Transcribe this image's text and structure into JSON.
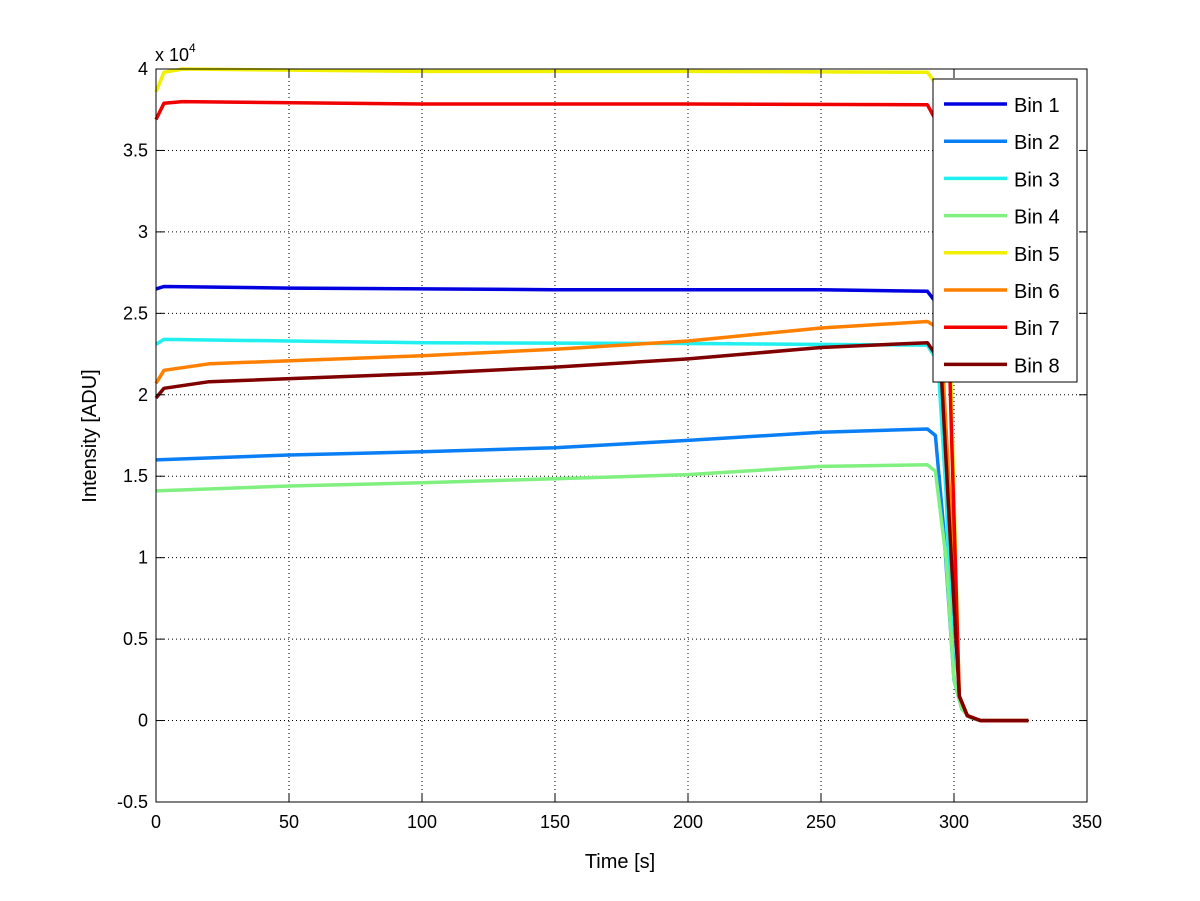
{
  "chart_data": {
    "type": "line",
    "title": "",
    "xlabel": "Time [s]",
    "ylabel": "Intensity [ADU]",
    "y_exponent_label": "x 10",
    "y_exponent": "4",
    "xlim": [
      0,
      350
    ],
    "ylim": [
      -5000,
      40000
    ],
    "xticks": [
      0,
      50,
      100,
      150,
      200,
      250,
      300,
      350
    ],
    "xtick_labels": [
      "0",
      "50",
      "100",
      "150",
      "200",
      "250",
      "300",
      "350"
    ],
    "yticks": [
      -5000,
      0,
      5000,
      10000,
      15000,
      20000,
      25000,
      30000,
      35000,
      40000
    ],
    "ytick_labels": [
      "-0.5",
      "0",
      "0.5",
      "1",
      "1.5",
      "2",
      "2.5",
      "3",
      "3.5",
      "4"
    ],
    "grid": true,
    "legend_position": "top-right",
    "series": [
      {
        "name": "Bin 1",
        "color": "#0000e0",
        "x": [
          0,
          3,
          50,
          150,
          250,
          290,
          294,
          297,
          300,
          303,
          306,
          310,
          328
        ],
        "y": [
          26500,
          26650,
          26550,
          26450,
          26450,
          26350,
          25500,
          15000,
          2500,
          700,
          200,
          0,
          0
        ]
      },
      {
        "name": "Bin 2",
        "color": "#0a7ff5",
        "x": [
          0,
          50,
          100,
          150,
          200,
          250,
          290,
          293,
          296,
          300,
          303,
          306,
          310,
          328
        ],
        "y": [
          16000,
          16300,
          16500,
          16750,
          17200,
          17700,
          17900,
          17500,
          12000,
          2500,
          700,
          200,
          0,
          0
        ]
      },
      {
        "name": "Bin 3",
        "color": "#20f0f0",
        "x": [
          0,
          3,
          100,
          200,
          290,
          294,
          297,
          300,
          303,
          306,
          310,
          328
        ],
        "y": [
          23100,
          23400,
          23200,
          23150,
          23050,
          22000,
          14000,
          2500,
          700,
          200,
          0,
          0
        ]
      },
      {
        "name": "Bin 4",
        "color": "#80f080",
        "x": [
          0,
          50,
          100,
          150,
          200,
          250,
          290,
          293,
          297,
          300,
          303,
          306,
          310,
          328
        ],
        "y": [
          14100,
          14400,
          14600,
          14850,
          15100,
          15600,
          15700,
          15300,
          10000,
          2500,
          700,
          200,
          0,
          0
        ]
      },
      {
        "name": "Bin 5",
        "color": "#f0f000",
        "x": [
          0,
          3,
          10,
          100,
          200,
          290,
          296,
          299,
          302,
          305,
          310,
          328
        ],
        "y": [
          38600,
          39800,
          40000,
          39850,
          39850,
          39800,
          38500,
          20000,
          1500,
          300,
          0,
          0
        ]
      },
      {
        "name": "Bin 6",
        "color": "#ff8000",
        "x": [
          0,
          3,
          20,
          100,
          150,
          200,
          250,
          290,
          295,
          299,
          302,
          305,
          310,
          328
        ],
        "y": [
          20700,
          21500,
          21900,
          22400,
          22800,
          23300,
          24100,
          24500,
          24000,
          12000,
          1500,
          300,
          0,
          0
        ]
      },
      {
        "name": "Bin 7",
        "color": "#f00000",
        "x": [
          0,
          3,
          10,
          100,
          200,
          290,
          296,
          299,
          302,
          305,
          310,
          328
        ],
        "y": [
          36900,
          37900,
          38000,
          37850,
          37850,
          37800,
          36000,
          18000,
          1500,
          300,
          0,
          0
        ]
      },
      {
        "name": "Bin 8",
        "color": "#800000",
        "x": [
          0,
          3,
          20,
          100,
          150,
          200,
          250,
          290,
          295,
          299,
          302,
          305,
          310,
          328
        ],
        "y": [
          19800,
          20400,
          20800,
          21300,
          21700,
          22200,
          22900,
          23200,
          22000,
          10000,
          1500,
          300,
          0,
          0
        ]
      }
    ]
  }
}
